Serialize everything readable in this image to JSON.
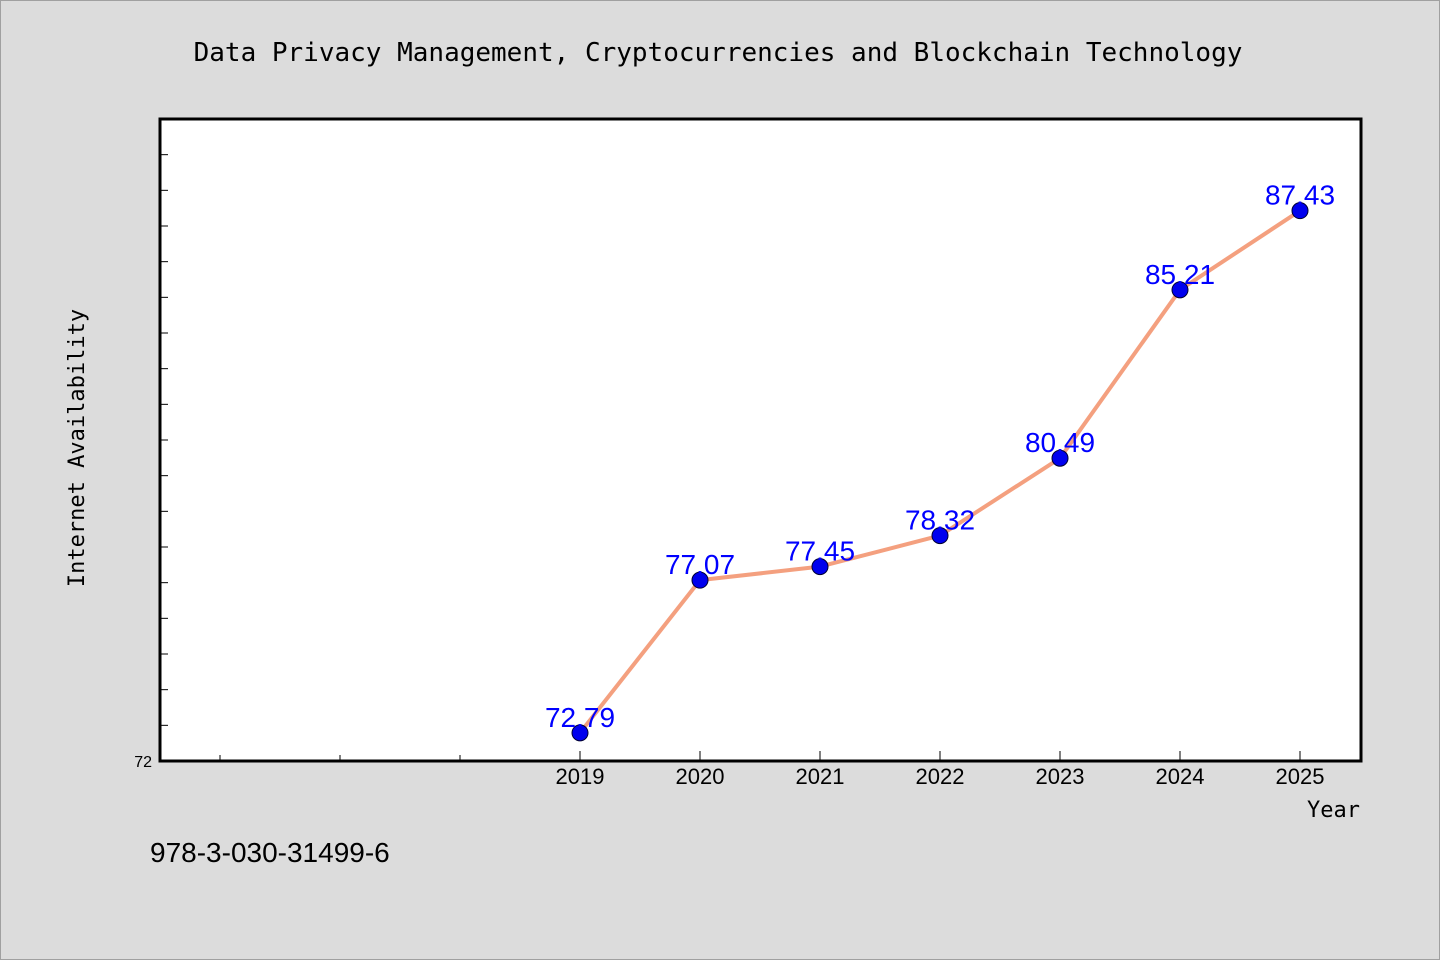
{
  "chart_data": {
    "type": "line",
    "title": "Data Privacy Management, Cryptocurrencies and Blockchain Technology",
    "xlabel": "Year",
    "ylabel": "Internet Availability",
    "categories": [
      "2019",
      "2020",
      "2021",
      "2022",
      "2023",
      "2024",
      "2025"
    ],
    "x_slots": 10,
    "first_category_slot": 3,
    "series": [
      {
        "values": [
          72.79,
          77.07,
          77.45,
          78.32,
          80.49,
          85.21,
          87.43
        ],
        "data_labels": [
          "72.79",
          "77.07",
          "77.45",
          "78.32",
          "80.49",
          "85.21",
          "87.43"
        ],
        "line_color": "#f4a07f",
        "marker_color": "#0000ee"
      }
    ],
    "ylim": [
      72,
      90
    ],
    "ytick_labels": [
      "72"
    ],
    "ytick_minor_step": 1,
    "grid": false,
    "legend": "none",
    "label_color": "#0000ff",
    "plot_background": "#ffffff",
    "page_background": "#dcdcdc"
  },
  "footer": {
    "isbn": "978-3-030-31499-6"
  }
}
